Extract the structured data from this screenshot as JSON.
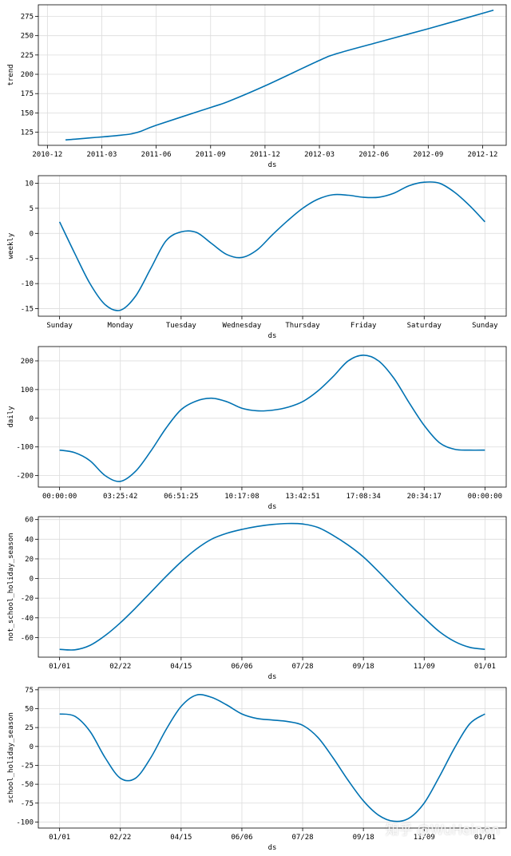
{
  "watermark": "知乎 @WuHeinen",
  "colors": {
    "line": "#0072B2",
    "grid": "#dcdcdc",
    "frame": "#000000"
  },
  "chart_data": [
    {
      "type": "line",
      "ylabel": "trend",
      "xlabel": "ds",
      "xlim": [
        -0.5,
        25.3
      ],
      "ylim": [
        108,
        290
      ],
      "xticks": [
        {
          "pos": 0,
          "label": "2010-12"
        },
        {
          "pos": 3,
          "label": "2011-03"
        },
        {
          "pos": 6,
          "label": "2011-06"
        },
        {
          "pos": 9,
          "label": "2011-09"
        },
        {
          "pos": 12,
          "label": "2011-12"
        },
        {
          "pos": 15,
          "label": "2012-03"
        },
        {
          "pos": 18,
          "label": "2012-06"
        },
        {
          "pos": 21,
          "label": "2012-09"
        },
        {
          "pos": 24,
          "label": "2012-12"
        }
      ],
      "yticks": [
        125,
        150,
        175,
        200,
        225,
        250,
        275
      ],
      "x": [
        1,
        4,
        5,
        6,
        9,
        10,
        12,
        15,
        16,
        18,
        21,
        24.6
      ],
      "y": [
        115,
        121,
        125,
        134,
        157,
        165,
        185,
        218,
        227,
        240,
        259,
        283
      ]
    },
    {
      "type": "line",
      "ylabel": "weekly",
      "xlabel": "ds",
      "xlim": [
        -0.35,
        7.35
      ],
      "ylim": [
        -16.5,
        11.5
      ],
      "xticks": [
        {
          "pos": 0,
          "label": "Sunday"
        },
        {
          "pos": 1,
          "label": "Monday"
        },
        {
          "pos": 2,
          "label": "Tuesday"
        },
        {
          "pos": 3,
          "label": "Wednesday"
        },
        {
          "pos": 4,
          "label": "Thursday"
        },
        {
          "pos": 5,
          "label": "Friday"
        },
        {
          "pos": 6,
          "label": "Saturday"
        },
        {
          "pos": 7,
          "label": "Sunday"
        }
      ],
      "yticks": [
        -15,
        -10,
        -5,
        0,
        5,
        10
      ],
      "x": [
        0,
        0.25,
        0.5,
        0.75,
        1.0,
        1.25,
        1.5,
        1.75,
        2.0,
        2.25,
        2.5,
        2.75,
        3.0,
        3.25,
        3.5,
        3.75,
        4.0,
        4.25,
        4.5,
        4.75,
        5.0,
        5.25,
        5.5,
        5.75,
        6.0,
        6.25,
        6.5,
        6.75,
        7.0
      ],
      "y": [
        2.3,
        -4.0,
        -10.0,
        -14.2,
        -15.3,
        -12.5,
        -7.0,
        -1.5,
        0.3,
        0.2,
        -2.0,
        -4.2,
        -4.8,
        -3.3,
        -0.3,
        2.5,
        5.0,
        6.8,
        7.7,
        7.6,
        7.2,
        7.2,
        8.0,
        9.5,
        10.2,
        10.0,
        8.2,
        5.5,
        2.3
      ]
    },
    {
      "type": "line",
      "ylabel": "daily",
      "xlabel": "ds",
      "xlim": [
        -0.35,
        7.35
      ],
      "ylim": [
        -240,
        250
      ],
      "xticks": [
        {
          "pos": 0,
          "label": "00:00:00"
        },
        {
          "pos": 1,
          "label": "03:25:42"
        },
        {
          "pos": 2,
          "label": "06:51:25"
        },
        {
          "pos": 3,
          "label": "10:17:08"
        },
        {
          "pos": 4,
          "label": "13:42:51"
        },
        {
          "pos": 5,
          "label": "17:08:34"
        },
        {
          "pos": 6,
          "label": "20:34:17"
        },
        {
          "pos": 7,
          "label": "00:00:00"
        }
      ],
      "yticks": [
        -200,
        -100,
        0,
        100,
        200
      ],
      "x": [
        0,
        0.25,
        0.5,
        0.75,
        1.0,
        1.25,
        1.5,
        1.75,
        2.0,
        2.25,
        2.5,
        2.75,
        3.0,
        3.25,
        3.5,
        3.75,
        4.0,
        4.25,
        4.5,
        4.75,
        5.0,
        5.25,
        5.5,
        5.75,
        6.0,
        6.25,
        6.5,
        6.75,
        7.0
      ],
      "y": [
        -111,
        -120,
        -148,
        -200,
        -220,
        -185,
        -115,
        -35,
        30,
        60,
        70,
        58,
        35,
        26,
        28,
        38,
        58,
        95,
        145,
        200,
        220,
        200,
        140,
        55,
        -25,
        -85,
        -108,
        -111,
        -111
      ]
    },
    {
      "type": "line",
      "ylabel": "not_school_holiday_season",
      "xlabel": "ds",
      "xlim": [
        -0.35,
        7.35
      ],
      "ylim": [
        -80,
        63
      ],
      "xticks": [
        {
          "pos": 0,
          "label": "01/01"
        },
        {
          "pos": 1,
          "label": "02/22"
        },
        {
          "pos": 2,
          "label": "04/15"
        },
        {
          "pos": 3,
          "label": "06/06"
        },
        {
          "pos": 4,
          "label": "07/28"
        },
        {
          "pos": 5,
          "label": "09/18"
        },
        {
          "pos": 6,
          "label": "11/09"
        },
        {
          "pos": 7,
          "label": "01/01"
        }
      ],
      "yticks": [
        -60,
        -40,
        -20,
        0,
        20,
        40,
        60
      ],
      "x": [
        0,
        0.25,
        0.5,
        0.75,
        1.0,
        1.25,
        1.5,
        1.75,
        2.0,
        2.25,
        2.5,
        2.75,
        3.0,
        3.25,
        3.5,
        3.75,
        4.0,
        4.25,
        4.5,
        4.75,
        5.0,
        5.25,
        5.5,
        5.75,
        6.0,
        6.25,
        6.5,
        6.75,
        7.0
      ],
      "y": [
        -72,
        -72.5,
        -68,
        -58,
        -45,
        -30,
        -14,
        2,
        17,
        30,
        40,
        46,
        50,
        53,
        55,
        56,
        55.5,
        52,
        44,
        34,
        22,
        7,
        -9,
        -25,
        -40,
        -54,
        -64,
        -70,
        -72
      ]
    },
    {
      "type": "line",
      "ylabel": "school_holiday_season",
      "xlabel": "ds",
      "xlim": [
        -0.35,
        7.35
      ],
      "ylim": [
        -108,
        78
      ],
      "xticks": [
        {
          "pos": 0,
          "label": "01/01"
        },
        {
          "pos": 1,
          "label": "02/22"
        },
        {
          "pos": 2,
          "label": "04/15"
        },
        {
          "pos": 3,
          "label": "06/06"
        },
        {
          "pos": 4,
          "label": "07/28"
        },
        {
          "pos": 5,
          "label": "09/18"
        },
        {
          "pos": 6,
          "label": "11/09"
        },
        {
          "pos": 7,
          "label": "01/01"
        }
      ],
      "yticks": [
        -100,
        -75,
        -50,
        -25,
        0,
        25,
        50,
        75
      ],
      "x": [
        0,
        0.25,
        0.5,
        0.75,
        1.0,
        1.25,
        1.5,
        1.75,
        2.0,
        2.25,
        2.5,
        2.75,
        3.0,
        3.25,
        3.5,
        3.75,
        4.0,
        4.25,
        4.5,
        4.75,
        5.0,
        5.25,
        5.5,
        5.75,
        6.0,
        6.25,
        6.5,
        6.75,
        7.0
      ],
      "y": [
        43,
        40,
        20,
        -15,
        -42,
        -42,
        -15,
        22,
        53,
        68,
        65,
        55,
        43,
        37,
        35,
        33,
        28,
        12,
        -15,
        -45,
        -72,
        -91,
        -99,
        -95,
        -75,
        -40,
        -2,
        30,
        43
      ]
    }
  ]
}
